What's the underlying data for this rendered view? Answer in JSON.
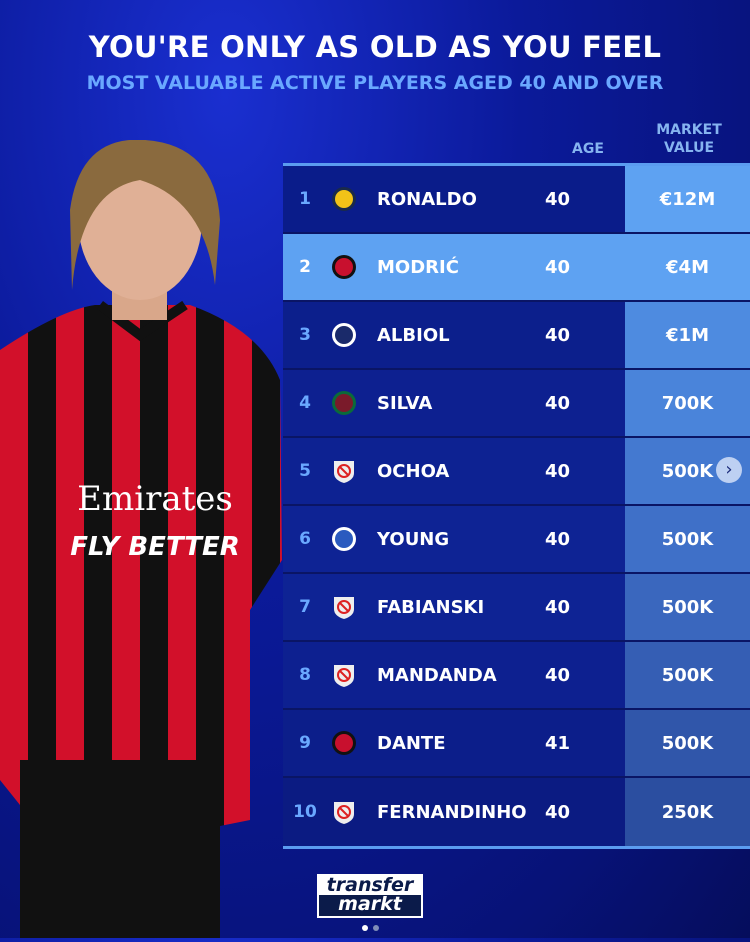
{
  "title": "YOU'RE ONLY AS OLD AS YOU FEEL",
  "subtitle": "MOST VALUABLE ACTIVE PLAYERS AGED 40 AND OVER",
  "headers": {
    "age": "AGE",
    "market_value_line1": "MARKET",
    "market_value_line2": "VALUE"
  },
  "rows": [
    {
      "rank": "1",
      "name": "RONALDO",
      "age": "40",
      "value": "€12M",
      "club_icon": "al-nassr-crest"
    },
    {
      "rank": "2",
      "name": "MODRIĆ",
      "age": "40",
      "value": "€4M",
      "club_icon": "ac-milan-crest"
    },
    {
      "rank": "3",
      "name": "ALBIOL",
      "age": "40",
      "value": "€1M",
      "club_icon": "pisa-crest"
    },
    {
      "rank": "4",
      "name": "SILVA",
      "age": "40",
      "value": "700K",
      "club_icon": "fluminense-crest"
    },
    {
      "rank": "5",
      "name": "OCHOA",
      "age": "40",
      "value": "500K",
      "club_icon": "without-club-icon"
    },
    {
      "rank": "6",
      "name": "YOUNG",
      "age": "40",
      "value": "500K",
      "club_icon": "ipswich-crest"
    },
    {
      "rank": "7",
      "name": "FABIANSKI",
      "age": "40",
      "value": "500K",
      "club_icon": "without-club-icon"
    },
    {
      "rank": "8",
      "name": "MANDANDA",
      "age": "40",
      "value": "500K",
      "club_icon": "without-club-icon"
    },
    {
      "rank": "9",
      "name": "DANTE",
      "age": "41",
      "value": "500K",
      "club_icon": "nice-crest"
    },
    {
      "rank": "10",
      "name": "FERNANDINHO",
      "age": "40",
      "value": "250K",
      "club_icon": "without-club-icon"
    }
  ],
  "player_shirt": {
    "sponsor": "Emirates",
    "slogan": "FLY BETTER"
  },
  "logo": {
    "line1": "transfer",
    "line2": "markt"
  },
  "carousel": {
    "current": 1,
    "total": 2
  },
  "colors": {
    "highlight": "#5ea2f2",
    "row_dark": "#0b1d86",
    "accent": "#6aa8ff"
  }
}
